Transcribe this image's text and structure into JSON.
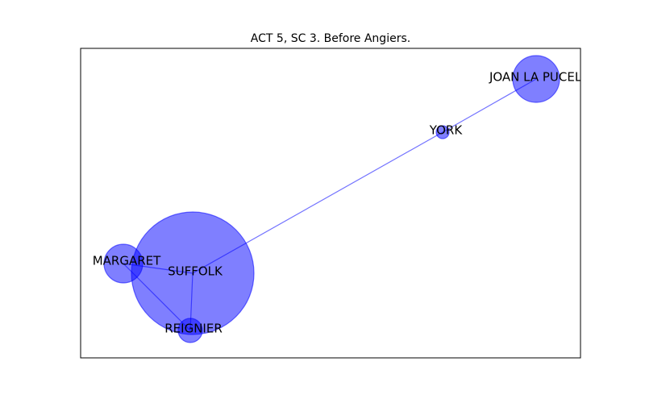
{
  "chart_data": {
    "type": "network",
    "title": "ACT 5, SC 3. Before Angiers.",
    "node_color": "#0000ff",
    "edge_color": "#0000ff",
    "frame_color": "#000000",
    "nodes": [
      {
        "id": "suffolk",
        "label": "SUFFOLK"
      },
      {
        "id": "margaret",
        "label": "MARGARET"
      },
      {
        "id": "reignier",
        "label": "REIGNIER"
      },
      {
        "id": "york",
        "label": "YORK"
      },
      {
        "id": "joan",
        "label": "JOAN LA PUCELLE"
      }
    ],
    "edges": [
      {
        "source": "suffolk",
        "target": "margaret"
      },
      {
        "source": "suffolk",
        "target": "reignier"
      },
      {
        "source": "margaret",
        "target": "reignier"
      },
      {
        "source": "suffolk",
        "target": "york"
      },
      {
        "source": "york",
        "target": "joan"
      }
    ]
  }
}
